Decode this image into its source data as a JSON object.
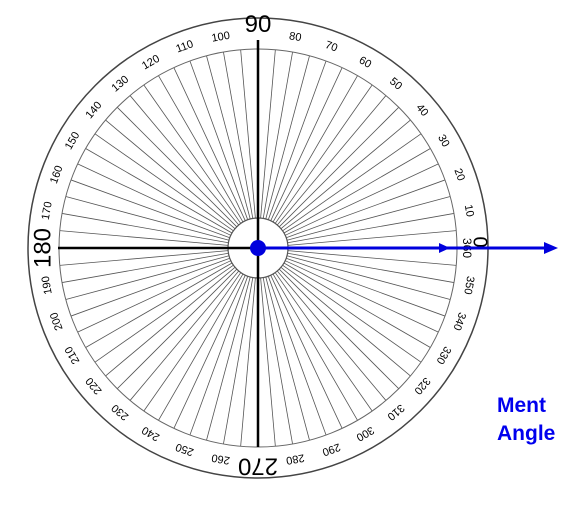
{
  "protractor": {
    "major_labels": [
      "90",
      "180",
      "270",
      "0",
      "360"
    ],
    "degree_labels": [
      {
        "deg": 10,
        "text": "10"
      },
      {
        "deg": 20,
        "text": "20"
      },
      {
        "deg": 30,
        "text": "30"
      },
      {
        "deg": 40,
        "text": "40"
      },
      {
        "deg": 50,
        "text": "50"
      },
      {
        "deg": 60,
        "text": "60"
      },
      {
        "deg": 70,
        "text": "70"
      },
      {
        "deg": 80,
        "text": "80"
      },
      {
        "deg": 100,
        "text": "100"
      },
      {
        "deg": 110,
        "text": "110"
      },
      {
        "deg": 120,
        "text": "120"
      },
      {
        "deg": 130,
        "text": "130"
      },
      {
        "deg": 140,
        "text": "140"
      },
      {
        "deg": 150,
        "text": "150"
      },
      {
        "deg": 160,
        "text": "160"
      },
      {
        "deg": 170,
        "text": "170"
      },
      {
        "deg": 190,
        "text": "190"
      },
      {
        "deg": 200,
        "text": "200"
      },
      {
        "deg": 210,
        "text": "210"
      },
      {
        "deg": 220,
        "text": "220"
      },
      {
        "deg": 230,
        "text": "230"
      },
      {
        "deg": 240,
        "text": "240"
      },
      {
        "deg": 250,
        "text": "250"
      },
      {
        "deg": 260,
        "text": "260"
      },
      {
        "deg": 280,
        "text": "280"
      },
      {
        "deg": 290,
        "text": "290"
      },
      {
        "deg": 300,
        "text": "300"
      },
      {
        "deg": 310,
        "text": "310"
      },
      {
        "deg": 320,
        "text": "320"
      },
      {
        "deg": 330,
        "text": "330"
      },
      {
        "deg": 340,
        "text": "340"
      },
      {
        "deg": 350,
        "text": "350"
      }
    ],
    "spoke_step_deg": 5,
    "colors": {
      "lines": "#000000",
      "spokes": "#555555",
      "ray": "#0000dd"
    }
  },
  "caption": {
    "line1": "Ment",
    "line2": "Angle"
  }
}
